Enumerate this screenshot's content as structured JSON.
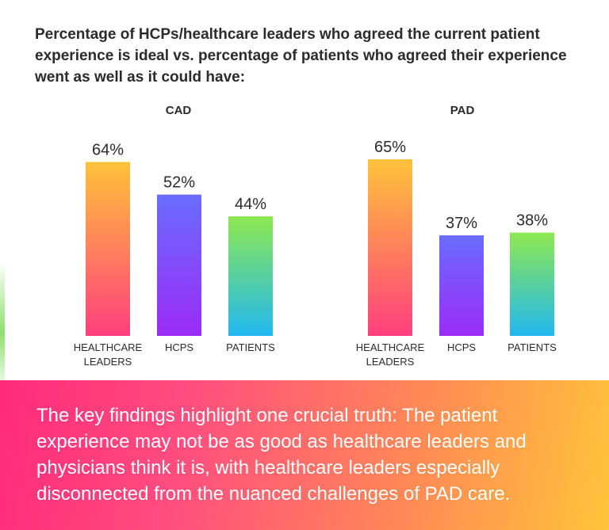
{
  "title": "Percentage of HCPs/healthcare leaders who agreed the current patient experience is ideal vs. percentage of patients who agreed their experience went as well as it could have:",
  "chart_data": [
    {
      "type": "bar",
      "title": "CAD",
      "categories": [
        "HEALTHCARE LEADERS",
        "HCPS",
        "PATIENTS"
      ],
      "values": [
        64,
        52,
        44
      ],
      "data_labels": [
        "64%",
        "52%",
        "44%"
      ],
      "ylim": [
        0,
        100
      ],
      "grid": false
    },
    {
      "type": "bar",
      "title": "PAD",
      "categories": [
        "HEALTHCARE LEADERS",
        "HCPS",
        "PATIENTS"
      ],
      "values": [
        65,
        37,
        38
      ],
      "data_labels": [
        "65%",
        "37%",
        "38%"
      ],
      "ylim": [
        0,
        100
      ],
      "grid": false
    }
  ],
  "bar_colors": {
    "healthcare_leaders": [
      "#ffc23a",
      "#ff3f7e"
    ],
    "hcps": [
      "#6a6cff",
      "#9b2cf5"
    ],
    "patients": [
      "#8ee850",
      "#22b8f0"
    ]
  },
  "findings": "The key findings highlight one crucial truth: The patient experience may not be as good as healthcare leaders and physicians think it is, with healthcare leaders especially disconnected from the nuanced challenges of PAD care."
}
